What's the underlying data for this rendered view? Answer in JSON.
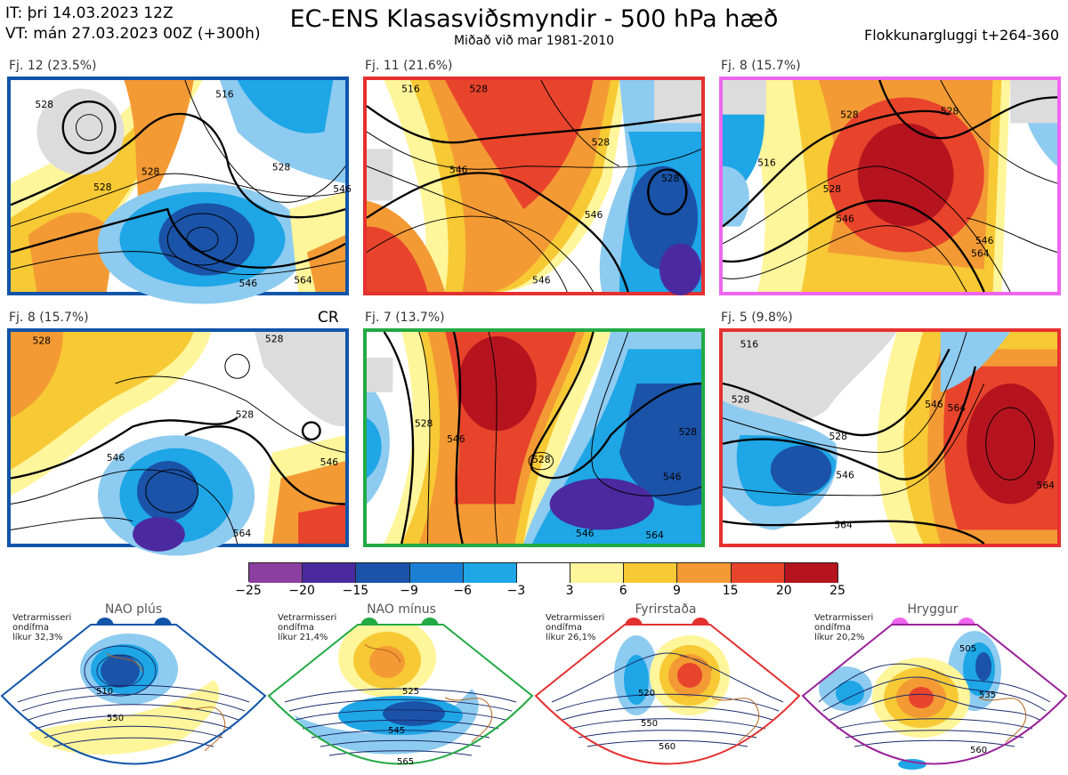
{
  "header": {
    "init_time": "IT: þri 14.03.2023 12Z",
    "valid_time": "VT: mán 27.03.2023 00Z  (+300h)",
    "title": "EC-ENS Klasasviðsmyndir - 500 hPa hæð",
    "subtitle": "Miðað við mar 1981-2010",
    "window": "Flokkunargluggi t+264-360"
  },
  "panels": [
    {
      "label": "Fj. 12 (23.5%)",
      "border_color": "#1155aa",
      "contours": [
        "528",
        "528",
        "516",
        "528",
        "546",
        "528",
        "546",
        "564"
      ]
    },
    {
      "label": "Fj. 11 (21.6%)",
      "border_color": "#e53030",
      "contours": [
        "528",
        "516",
        "528",
        "546",
        "546",
        "528",
        "546"
      ]
    },
    {
      "label": "Fj. 8 (15.7%)",
      "border_color": "#ee66ee",
      "contours": [
        "528",
        "528",
        "516",
        "528",
        "546",
        "564",
        "546"
      ]
    },
    {
      "label": "Fj. 8 (15.7%)",
      "border_color": "#1155aa",
      "extra": "CR",
      "contours": [
        "528",
        "528",
        "528",
        "546",
        "546",
        "564"
      ]
    },
    {
      "label": "Fj. 7 (13.7%)",
      "border_color": "#22aa44",
      "contours": [
        "528",
        "546",
        "528",
        "528",
        "546",
        "546",
        "564"
      ]
    },
    {
      "label": "Fj. 5 (9.8%)",
      "border_color": "#e53030",
      "contours": [
        "516",
        "528",
        "546",
        "528",
        "546",
        "564",
        "564",
        "564"
      ]
    }
  ],
  "colorbar": {
    "ticks": [
      "−25",
      "−20",
      "−15",
      "−9",
      "−6",
      "−3",
      "3",
      "6",
      "9",
      "15",
      "20",
      "25"
    ],
    "colors": [
      "#8b3fa0",
      "#4b2aa0",
      "#1a53a8",
      "#1b7fd4",
      "#1ea6e6",
      "#8ecbf0",
      "#ffffff",
      "#fff59a",
      "#f7c934",
      "#f39a34",
      "#e8442c",
      "#b5141e"
    ]
  },
  "regimes": [
    {
      "name": "NAO plús",
      "note": "Vetrarmisseri\nondífma\nlíkur 32,3%",
      "color": "#1155aa",
      "contours": [
        "510",
        "550"
      ]
    },
    {
      "name": "NAO mínus",
      "note": "Vetrarmisseri\nondífma\nlíkur 21,4%",
      "color": "#22aa44",
      "contours": [
        "525",
        "545",
        "565"
      ]
    },
    {
      "name": "Fyrirstaða",
      "note": "Vetrarmisseri\nondífma\nlíkur 26,1%",
      "color": "#e53030",
      "contours": [
        "520",
        "550",
        "560"
      ]
    },
    {
      "name": "Hryggur",
      "note": "Vetrarmisseri\nondífma\nlíkur 20,2%",
      "color": "#ee66ee",
      "contours": [
        "505",
        "535",
        "560"
      ]
    }
  ]
}
